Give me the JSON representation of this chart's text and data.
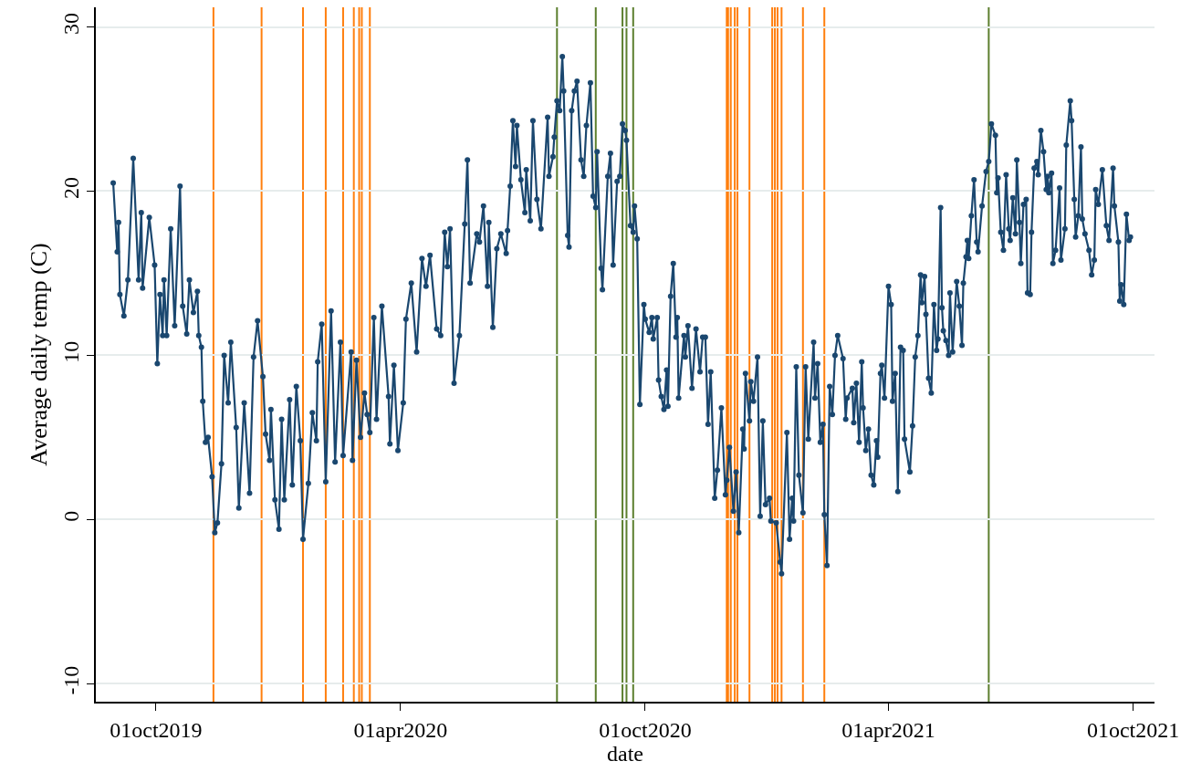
{
  "chart_data": {
    "type": "line",
    "xlabel": "date",
    "ylabel": "Average daily temp (C)",
    "x": [
      "2019-08-30",
      "2019-09-02",
      "2019-09-03",
      "2019-09-04",
      "2019-09-07",
      "2019-09-10",
      "2019-09-14",
      "2019-09-18",
      "2019-09-20",
      "2019-09-21",
      "2019-09-26",
      "2019-09-30",
      "2019-10-02",
      "2019-10-04",
      "2019-10-06",
      "2019-10-07",
      "2019-10-09",
      "2019-10-12",
      "2019-10-15",
      "2019-10-19",
      "2019-10-21",
      "2019-10-24",
      "2019-10-26",
      "2019-10-29",
      "2019-11-01",
      "2019-11-02",
      "2019-11-04",
      "2019-11-05",
      "2019-11-07",
      "2019-11-09",
      "2019-11-12",
      "2019-11-14",
      "2019-11-16",
      "2019-11-19",
      "2019-11-21",
      "2019-11-24",
      "2019-11-26",
      "2019-11-30",
      "2019-12-02",
      "2019-12-06",
      "2019-12-10",
      "2019-12-13",
      "2019-12-16",
      "2019-12-20",
      "2019-12-22",
      "2019-12-25",
      "2019-12-26",
      "2019-12-29",
      "2020-01-01",
      "2020-01-03",
      "2020-01-05",
      "2020-01-09",
      "2020-01-11",
      "2020-01-14",
      "2020-01-17",
      "2020-01-19",
      "2020-01-23",
      "2020-01-26",
      "2020-01-29",
      "2020-01-30",
      "2020-02-02",
      "2020-02-05",
      "2020-02-09",
      "2020-02-12",
      "2020-02-16",
      "2020-02-18",
      "2020-02-24",
      "2020-02-25",
      "2020-02-28",
      "2020-03-02",
      "2020-03-05",
      "2020-03-07",
      "2020-03-09",
      "2020-03-12",
      "2020-03-14",
      "2020-03-18",
      "2020-03-23",
      "2020-03-24",
      "2020-03-27",
      "2020-03-30",
      "2020-04-03",
      "2020-04-05",
      "2020-04-09",
      "2020-04-13",
      "2020-04-17",
      "2020-04-20",
      "2020-04-23",
      "2020-04-28",
      "2020-05-01",
      "2020-05-04",
      "2020-05-06",
      "2020-05-08",
      "2020-05-11",
      "2020-05-15",
      "2020-05-19",
      "2020-05-21",
      "2020-05-23",
      "2020-05-28",
      "2020-05-30",
      "2020-06-02",
      "2020-06-05",
      "2020-06-06",
      "2020-06-09",
      "2020-06-12",
      "2020-06-15",
      "2020-06-19",
      "2020-06-20",
      "2020-06-22",
      "2020-06-24",
      "2020-06-26",
      "2020-06-27",
      "2020-06-30",
      "2020-07-03",
      "2020-07-04",
      "2020-07-07",
      "2020-07-09",
      "2020-07-12",
      "2020-07-15",
      "2020-07-20",
      "2020-07-21",
      "2020-07-24",
      "2020-07-25",
      "2020-07-27",
      "2020-07-29",
      "2020-07-31",
      "2020-08-01",
      "2020-08-04",
      "2020-08-05",
      "2020-08-07",
      "2020-08-09",
      "2020-08-11",
      "2020-08-14",
      "2020-08-16",
      "2020-08-18",
      "2020-08-21",
      "2020-08-23",
      "2020-08-25",
      "2020-08-26",
      "2020-08-29",
      "2020-08-30",
      "2020-09-03",
      "2020-09-05",
      "2020-09-07",
      "2020-09-10",
      "2020-09-12",
      "2020-09-14",
      "2020-09-16",
      "2020-09-17",
      "2020-09-20",
      "2020-09-22",
      "2020-09-23",
      "2020-09-25",
      "2020-09-27",
      "2020-09-30",
      "2020-10-01",
      "2020-10-04",
      "2020-10-06",
      "2020-10-07",
      "2020-10-10",
      "2020-10-11",
      "2020-10-13",
      "2020-10-15",
      "2020-10-17",
      "2020-10-18",
      "2020-10-20",
      "2020-10-22",
      "2020-10-24",
      "2020-10-25",
      "2020-10-26",
      "2020-10-30",
      "2020-10-31",
      "2020-11-02",
      "2020-11-05",
      "2020-11-08",
      "2020-11-11",
      "2020-11-13",
      "2020-11-15",
      "2020-11-17",
      "2020-11-19",
      "2020-11-22",
      "2020-11-24",
      "2020-11-27",
      "2020-11-30",
      "2020-12-01",
      "2020-12-03",
      "2020-12-06",
      "2020-12-08",
      "2020-12-10",
      "2020-12-13",
      "2020-12-14",
      "2020-12-15",
      "2020-12-18",
      "2020-12-19",
      "2020-12-21",
      "2020-12-24",
      "2020-12-26",
      "2020-12-28",
      "2020-12-30",
      "2021-01-02",
      "2021-01-03",
      "2021-01-07",
      "2021-01-10",
      "2021-01-11",
      "2021-01-15",
      "2021-01-17",
      "2021-01-19",
      "2021-01-20",
      "2021-01-22",
      "2021-01-24",
      "2021-01-27",
      "2021-01-29",
      "2021-01-31",
      "2021-02-04",
      "2021-02-05",
      "2021-02-07",
      "2021-02-09",
      "2021-02-11",
      "2021-02-12",
      "2021-02-14",
      "2021-02-16",
      "2021-02-18",
      "2021-02-20",
      "2021-02-22",
      "2021-02-26",
      "2021-02-28",
      "2021-03-01",
      "2021-03-05",
      "2021-03-06",
      "2021-03-08",
      "2021-03-10",
      "2021-03-12",
      "2021-03-13",
      "2021-03-15",
      "2021-03-17",
      "2021-03-19",
      "2021-03-21",
      "2021-03-23",
      "2021-03-24",
      "2021-03-26",
      "2021-03-27",
      "2021-03-29",
      "2021-04-01",
      "2021-04-03",
      "2021-04-04",
      "2021-04-06",
      "2021-04-08",
      "2021-04-10",
      "2021-04-12",
      "2021-04-13",
      "2021-04-17",
      "2021-04-19",
      "2021-04-21",
      "2021-04-23",
      "2021-04-25",
      "2021-04-26",
      "2021-04-28",
      "2021-04-29",
      "2021-05-01",
      "2021-05-03",
      "2021-05-05",
      "2021-05-07",
      "2021-05-08",
      "2021-05-10",
      "2021-05-11",
      "2021-05-12",
      "2021-05-14",
      "2021-05-16",
      "2021-05-17",
      "2021-05-19",
      "2021-05-22",
      "2021-05-24",
      "2021-05-26",
      "2021-05-27",
      "2021-05-29",
      "2021-05-30",
      "2021-05-31",
      "2021-06-02",
      "2021-06-04",
      "2021-06-06",
      "2021-06-07",
      "2021-06-10",
      "2021-06-13",
      "2021-06-15",
      "2021-06-17",
      "2021-06-20",
      "2021-06-21",
      "2021-06-22",
      "2021-06-24",
      "2021-06-26",
      "2021-06-28",
      "2021-06-30",
      "2021-07-01",
      "2021-07-03",
      "2021-07-05",
      "2021-07-06",
      "2021-07-08",
      "2021-07-09",
      "2021-07-11",
      "2021-07-13",
      "2021-07-14",
      "2021-07-16",
      "2021-07-17",
      "2021-07-19",
      "2021-07-21",
      "2021-07-22",
      "2021-07-24",
      "2021-07-26",
      "2021-07-28",
      "2021-07-29",
      "2021-07-30",
      "2021-08-01",
      "2021-08-02",
      "2021-08-04",
      "2021-08-07",
      "2021-08-08",
      "2021-08-11",
      "2021-08-12",
      "2021-08-15",
      "2021-08-16",
      "2021-08-18",
      "2021-08-19",
      "2021-08-21",
      "2021-08-23",
      "2021-08-24",
      "2021-08-26",
      "2021-08-29",
      "2021-08-31",
      "2021-09-02",
      "2021-09-03",
      "2021-09-05",
      "2021-09-08",
      "2021-09-11",
      "2021-09-13",
      "2021-09-16",
      "2021-09-17",
      "2021-09-20",
      "2021-09-21",
      "2021-09-22",
      "2021-09-24",
      "2021-09-26",
      "2021-09-28",
      "2021-09-29"
    ],
    "series": [
      {
        "color": "#1a476f",
        "values": [
          20.5,
          16.3,
          18.1,
          13.7,
          12.4,
          14.6,
          22.0,
          14.6,
          18.7,
          14.1,
          18.4,
          15.5,
          9.5,
          13.7,
          11.2,
          14.6,
          11.2,
          17.7,
          11.8,
          20.3,
          13.0,
          11.3,
          14.6,
          12.6,
          13.9,
          11.2,
          10.5,
          7.2,
          4.7,
          5.0,
          2.6,
          -0.8,
          -0.2,
          3.4,
          10.0,
          7.1,
          10.8,
          5.6,
          0.7,
          7.1,
          1.6,
          9.9,
          12.1,
          8.7,
          5.2,
          3.6,
          6.7,
          1.2,
          -0.6,
          6.1,
          1.2,
          7.3,
          2.1,
          8.1,
          4.8,
          -1.2,
          2.2,
          6.5,
          4.8,
          9.6,
          11.9,
          2.3,
          12.7,
          3.5,
          10.8,
          3.9,
          10.2,
          3.6,
          9.7,
          5.0,
          7.7,
          6.4,
          5.3,
          12.3,
          6.1,
          13.0,
          7.5,
          4.6,
          9.4,
          4.2,
          7.1,
          12.2,
          14.4,
          10.2,
          15.9,
          14.2,
          16.1,
          11.6,
          11.2,
          17.5,
          15.4,
          17.7,
          8.3,
          11.2,
          18.0,
          21.9,
          14.4,
          17.4,
          16.9,
          19.1,
          14.2,
          18.1,
          11.7,
          16.5,
          17.4,
          16.2,
          17.6,
          20.3,
          24.3,
          21.5,
          24.0,
          20.7,
          18.7,
          21.3,
          18.2,
          24.3,
          19.5,
          17.7,
          24.5,
          20.9,
          22.1,
          23.3,
          25.5,
          24.9,
          28.2,
          26.1,
          17.3,
          16.6,
          24.9,
          26.1,
          26.7,
          21.9,
          20.9,
          24.0,
          26.6,
          19.7,
          19.0,
          22.4,
          15.3,
          14.0,
          20.9,
          22.3,
          15.5,
          20.6,
          20.9,
          24.1,
          23.7,
          23.1,
          17.9,
          17.5,
          19.1,
          17.1,
          7.0,
          13.1,
          12.2,
          11.4,
          12.3,
          11.0,
          12.3,
          8.5,
          7.5,
          6.7,
          9.1,
          6.9,
          13.6,
          15.6,
          11.1,
          12.3,
          7.4,
          11.2,
          9.9,
          11.8,
          8.0,
          11.6,
          9.0,
          11.1,
          11.1,
          5.8,
          9.0,
          1.3,
          3.0,
          6.8,
          1.5,
          2.4,
          4.4,
          0.5,
          2.9,
          -0.8,
          5.5,
          4.3,
          8.9,
          6.0,
          8.4,
          7.2,
          9.9,
          0.2,
          6.0,
          0.9,
          1.3,
          -0.1,
          -0.2,
          -2.6,
          -3.3,
          5.3,
          -1.2,
          1.3,
          -0.1,
          9.3,
          2.7,
          0.4,
          9.3,
          4.9,
          10.8,
          7.4,
          9.5,
          4.7,
          5.8,
          0.3,
          -2.8,
          8.1,
          6.4,
          10.0,
          11.2,
          9.8,
          6.1,
          7.4,
          8.0,
          5.9,
          8.3,
          4.7,
          9.6,
          6.8,
          4.2,
          5.5,
          2.7,
          2.1,
          4.8,
          3.8,
          8.9,
          9.4,
          7.4,
          14.2,
          13.1,
          7.2,
          8.9,
          1.7,
          10.5,
          10.3,
          4.9,
          2.9,
          5.7,
          9.9,
          11.2,
          14.9,
          13.2,
          14.8,
          12.5,
          8.6,
          7.7,
          13.1,
          10.3,
          11.0,
          19.0,
          12.9,
          11.5,
          10.9,
          10.0,
          13.8,
          10.2,
          14.5,
          13.0,
          10.6,
          14.4,
          16.0,
          17.0,
          15.9,
          18.5,
          20.7,
          16.9,
          16.3,
          19.1,
          21.2,
          21.8,
          24.1,
          23.4,
          19.9,
          20.8,
          17.5,
          16.4,
          21.0,
          17.7,
          17.0,
          19.6,
          17.4,
          21.9,
          18.1,
          15.6,
          19.2,
          19.5,
          13.8,
          13.7,
          17.5,
          21.4,
          21.8,
          21.0,
          23.7,
          22.4,
          20.1,
          20.9,
          19.9,
          21.1,
          15.6,
          16.4,
          20.2,
          15.8,
          17.7,
          22.8,
          25.5,
          24.3,
          19.5,
          17.2,
          18.5,
          22.7,
          18.3,
          17.4,
          16.4,
          14.9,
          15.8,
          20.1,
          19.2,
          21.3,
          17.9,
          17.0,
          21.4,
          19.1,
          16.9,
          13.3,
          14.3,
          13.1,
          18.6,
          17.0,
          17.2
        ]
      }
    ],
    "marker": "circle",
    "line_style": "solid",
    "xlim": [
      "2019-08-17",
      "2021-10-17"
    ],
    "xticks": [
      {
        "value": "2019-10-01",
        "label": "01oct2019"
      },
      {
        "value": "2020-04-01",
        "label": "01apr2020"
      },
      {
        "value": "2020-10-01",
        "label": "01oct2020"
      },
      {
        "value": "2021-04-01",
        "label": "01apr2021"
      },
      {
        "value": "2021-10-01",
        "label": "01oct2021"
      }
    ],
    "ylim": [
      -11.1,
      31.2
    ],
    "yticks": [
      -10,
      0,
      10,
      20,
      30
    ],
    "grid": "y",
    "ref_lines": [
      {
        "axis": "x",
        "value": "2019-11-13",
        "color": "#ff7f0e"
      },
      {
        "axis": "x",
        "value": "2019-12-19",
        "color": "#ff7f0e"
      },
      {
        "axis": "x",
        "value": "2020-01-19",
        "color": "#ff7f0e"
      },
      {
        "axis": "x",
        "value": "2020-02-05",
        "color": "#ff7f0e"
      },
      {
        "axis": "x",
        "value": "2020-02-18",
        "color": "#ff7f0e"
      },
      {
        "axis": "x",
        "value": "2020-02-26",
        "color": "#ff7f0e"
      },
      {
        "axis": "x",
        "value": "2020-03-01",
        "color": "#ff7f0e"
      },
      {
        "axis": "x",
        "value": "2020-03-03",
        "color": "#ff7f0e"
      },
      {
        "axis": "x",
        "value": "2020-03-09",
        "color": "#ff7f0e"
      },
      {
        "axis": "x",
        "value": "2020-07-27",
        "color": "#5c7f2e"
      },
      {
        "axis": "x",
        "value": "2020-08-25",
        "color": "#5c7f2e"
      },
      {
        "axis": "x",
        "value": "2020-09-14",
        "color": "#5c7f2e"
      },
      {
        "axis": "x",
        "value": "2020-09-17",
        "color": "#5c7f2e"
      },
      {
        "axis": "x",
        "value": "2020-09-22",
        "color": "#5c7f2e"
      },
      {
        "axis": "x",
        "value": "2020-12-01",
        "color": "#ff7f0e"
      },
      {
        "axis": "x",
        "value": "2020-12-02",
        "color": "#ff7f0e"
      },
      {
        "axis": "x",
        "value": "2020-12-04",
        "color": "#ff7f0e"
      },
      {
        "axis": "x",
        "value": "2020-12-07",
        "color": "#ff7f0e"
      },
      {
        "axis": "x",
        "value": "2020-12-09",
        "color": "#ff7f0e"
      },
      {
        "axis": "x",
        "value": "2020-12-18",
        "color": "#ff7f0e"
      },
      {
        "axis": "x",
        "value": "2021-01-04",
        "color": "#ff7f0e"
      },
      {
        "axis": "x",
        "value": "2021-01-06",
        "color": "#ff7f0e"
      },
      {
        "axis": "x",
        "value": "2021-01-08",
        "color": "#ff7f0e"
      },
      {
        "axis": "x",
        "value": "2021-01-11",
        "color": "#ff7f0e"
      },
      {
        "axis": "x",
        "value": "2021-01-27",
        "color": "#ff7f0e"
      },
      {
        "axis": "x",
        "value": "2021-02-12",
        "color": "#ff7f0e"
      },
      {
        "axis": "x",
        "value": "2021-06-15",
        "color": "#5c7f2e"
      }
    ]
  }
}
